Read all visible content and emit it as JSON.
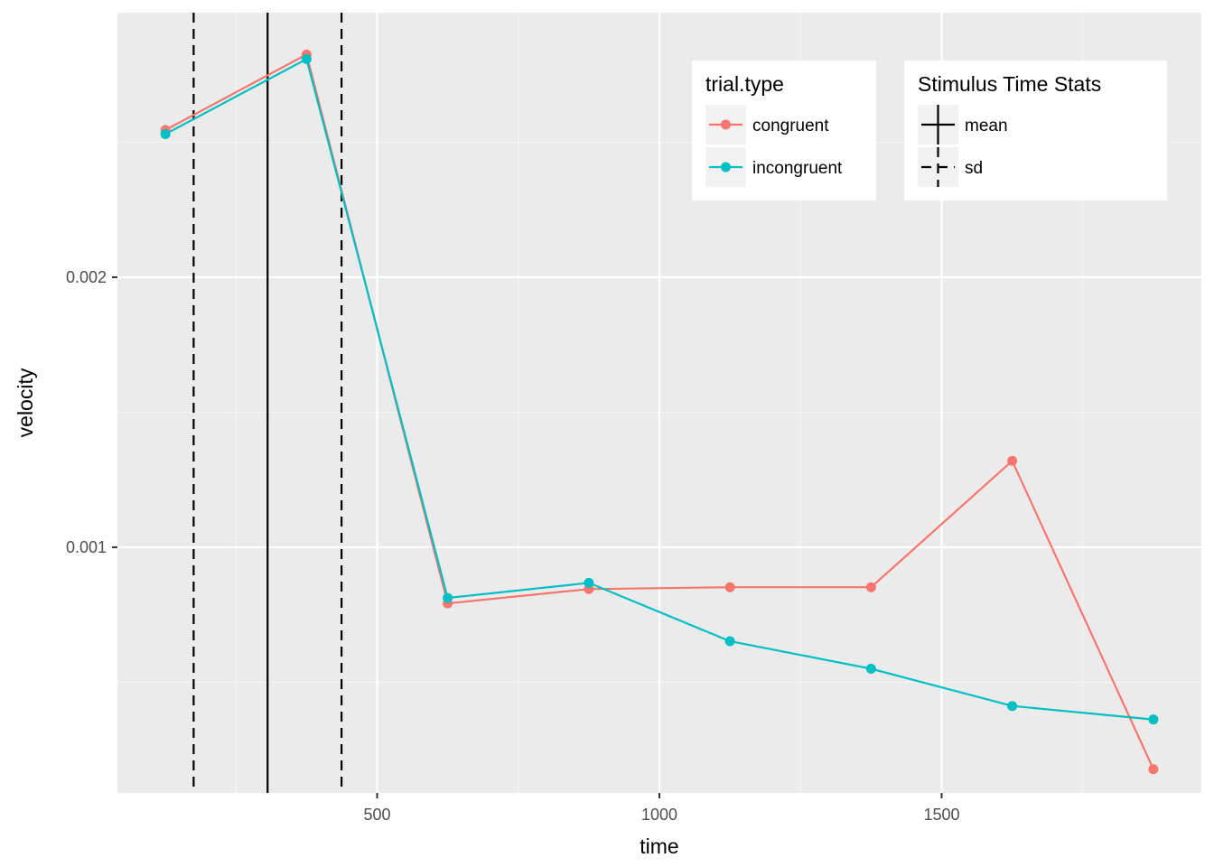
{
  "chart_data": {
    "type": "line",
    "xlabel": "time",
    "ylabel": "velocity",
    "xlim": [
      40,
      1960
    ],
    "ylim": [
      9e-05,
      0.00298
    ],
    "x_ticks": [
      500,
      1000,
      1500
    ],
    "x_tick_labels": [
      "500",
      "1000",
      "1500"
    ],
    "y_ticks": [
      0.001,
      0.002
    ],
    "y_tick_labels": [
      "0.001",
      "0.002"
    ],
    "grid": true,
    "x": [
      125,
      375,
      625,
      875,
      1125,
      1375,
      1625,
      1875
    ],
    "series": [
      {
        "name": "congruent",
        "color": "#F8766D",
        "values": [
          0.002545,
          0.002825,
          0.000792,
          0.000845,
          0.000852,
          0.000852,
          0.00132,
          0.000178
        ]
      },
      {
        "name": "incongruent",
        "color": "#00BFC4",
        "values": [
          0.00253,
          0.002808,
          0.000812,
          0.000868,
          0.000652,
          0.00055,
          0.000412,
          0.000362
        ]
      }
    ],
    "stimulus_time_stats": {
      "mean": 306,
      "sd_lower": 175,
      "sd_upper": 437
    },
    "legends": [
      {
        "title": "trial.type",
        "entries": [
          "congruent",
          "incongruent"
        ]
      },
      {
        "title": "Stimulus Time Stats",
        "entries": [
          "mean",
          "sd"
        ]
      }
    ],
    "legend_placement": "top-right inside plot"
  }
}
